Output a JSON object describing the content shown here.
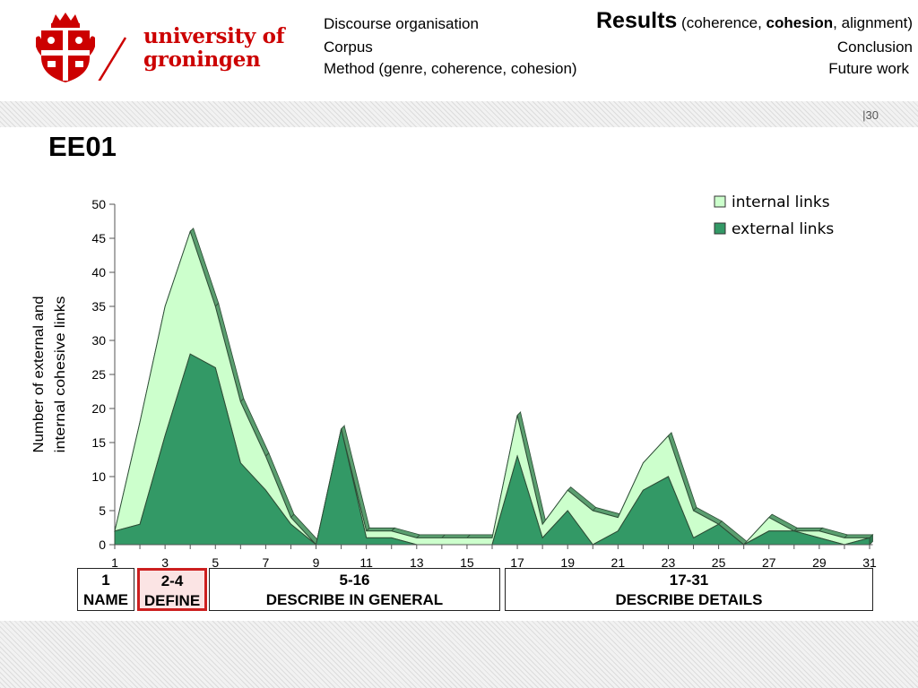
{
  "header": {
    "logo": {
      "line1": "university of",
      "line2": "groningen",
      "icon": "university-crest-icon"
    },
    "nav": {
      "discourse": "Discourse organisation",
      "corpus": "Corpus",
      "method": "Method (genre, coherence, cohesion)",
      "results_title": "Results",
      "results_open": " (coherence, ",
      "results_bold": "cohesion",
      "results_close": ", alignment)",
      "conclusion": "Conclusion",
      "future": "Future work"
    }
  },
  "slide": {
    "title": "EE01",
    "page_number": "|30"
  },
  "chart_data": {
    "type": "area",
    "stacked": true,
    "x": [
      1,
      2,
      3,
      4,
      5,
      6,
      7,
      8,
      9,
      10,
      11,
      12,
      13,
      14,
      15,
      16,
      17,
      18,
      19,
      20,
      21,
      22,
      23,
      24,
      25,
      26,
      27,
      28,
      29,
      30,
      31
    ],
    "x_tick_labels": [
      "1",
      "3",
      "5",
      "7",
      "9",
      "11",
      "13",
      "15",
      "17",
      "19",
      "21",
      "23",
      "25",
      "27",
      "29",
      "31"
    ],
    "ylabel_lines": [
      "Number of external and",
      "internal cohesive links"
    ],
    "ylim": [
      0,
      50
    ],
    "yticks": [
      0,
      5,
      10,
      15,
      20,
      25,
      30,
      35,
      40,
      45,
      50
    ],
    "legend_position": "top-right",
    "series": [
      {
        "name": "external links",
        "color": "#339966",
        "values": [
          2,
          3,
          16,
          28,
          26,
          12,
          8,
          3,
          0,
          17,
          1,
          1,
          0,
          0,
          0,
          0,
          13,
          1,
          5,
          0,
          2,
          8,
          10,
          1,
          3,
          0,
          2,
          2,
          1,
          0,
          1
        ]
      },
      {
        "name": "internal links",
        "color": "#ccffcc",
        "values": [
          0,
          15,
          19,
          18,
          9,
          9,
          5,
          1,
          0,
          0,
          1,
          1,
          1,
          1,
          1,
          1,
          6,
          2,
          3,
          5,
          2,
          4,
          6,
          4,
          0,
          0,
          2,
          0,
          1,
          1,
          0
        ]
      }
    ],
    "side_color": "#5a9e6f"
  },
  "segments": [
    {
      "range": "1",
      "label": "NAME"
    },
    {
      "range": "2-4",
      "label": "DEFINE",
      "highlight": true
    },
    {
      "range": "5-16",
      "label": "DESCRIBE IN GENERAL"
    },
    {
      "range": "17-31",
      "label": "DESCRIBE DETAILS"
    }
  ]
}
